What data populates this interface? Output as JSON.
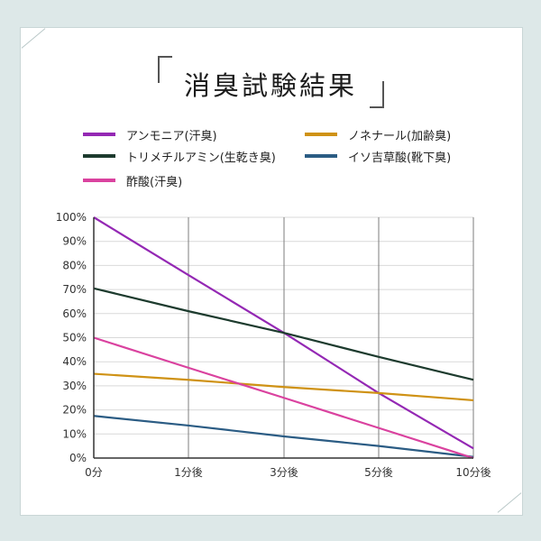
{
  "title": "消臭試験結果",
  "chart_data": {
    "type": "line",
    "title": "消臭試験結果",
    "categories": [
      "0分",
      "1分後",
      "3分後",
      "5分後",
      "10分後"
    ],
    "y_ticks": [
      "0%",
      "10%",
      "20%",
      "30%",
      "40%",
      "50%",
      "60%",
      "70%",
      "80%",
      "90%",
      "100%"
    ],
    "ylim": [
      0,
      100
    ],
    "grid": true,
    "legend_position": "top",
    "series": [
      {
        "name": "アンモニア(汗臭)",
        "color": "#9428b4",
        "values": [
          100,
          76,
          52,
          27,
          4
        ]
      },
      {
        "name": "ノネナール(加齢臭)",
        "color": "#cf9215",
        "values": [
          35,
          32.5,
          29.5,
          27,
          24
        ]
      },
      {
        "name": "トリメチルアミン(生乾き臭)",
        "color": "#1d3b2e",
        "values": [
          70.5,
          61,
          52,
          42,
          32.5
        ]
      },
      {
        "name": "イソ吉草酸(靴下臭)",
        "color": "#2b5c84",
        "values": [
          17.5,
          13.5,
          9,
          5,
          0.5
        ]
      },
      {
        "name": "酢酸(汗臭)",
        "color": "#da429f",
        "values": [
          50,
          37.5,
          25,
          12.5,
          0
        ]
      }
    ]
  }
}
